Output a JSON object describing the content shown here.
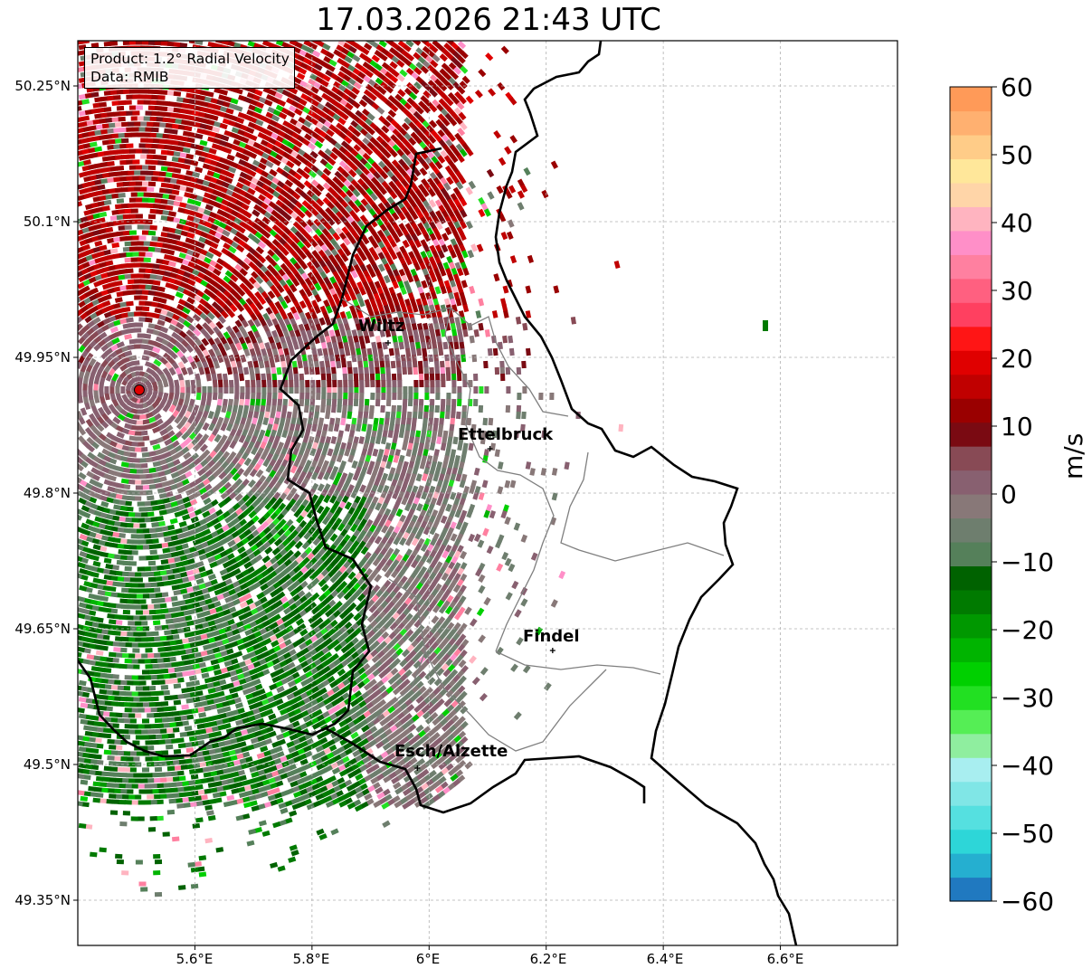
{
  "title": "17.03.2026 21:43 UTC",
  "info": {
    "product_line": "Product: 1.2° Radial Velocity",
    "data_line": "Data: RMIB"
  },
  "axes": {
    "lat_ticks": [
      "50.25°N",
      "50.1°N",
      "49.95°N",
      "49.8°N",
      "49.65°N",
      "49.5°N",
      "49.35°N"
    ],
    "lon_ticks": [
      "5.6°E",
      "5.8°E",
      "6°E",
      "6.2°E",
      "6.4°E",
      "6.6°E"
    ],
    "lat_range": [
      49.3,
      50.3
    ],
    "lon_range": [
      5.4,
      6.8
    ]
  },
  "colorbar": {
    "unit": "m/s",
    "range": [
      -60,
      60
    ],
    "tick_labels": [
      "60",
      "50",
      "40",
      "30",
      "20",
      "10",
      "0",
      "−10",
      "−20",
      "−30",
      "−40",
      "−50",
      "−60"
    ]
  },
  "cities": [
    {
      "name": "Wiltz",
      "lon": 5.93,
      "lat": 49.966
    },
    {
      "name": "Ettelbruck",
      "lon": 6.104,
      "lat": 49.849
    },
    {
      "name": "Findel",
      "lon": 6.211,
      "lat": 49.626
    },
    {
      "name": "Esch/Alzette",
      "lon": 5.98,
      "lat": 49.496
    }
  ],
  "radar_site": {
    "lon": 5.505,
    "lat": 49.914
  },
  "colors": {
    "border": "#000000",
    "district_lines": "#7f7f7f",
    "radar_marker": "#e00000",
    "cmap": [
      "#2079c0",
      "#25afd0",
      "#2dd6d8",
      "#55e0e0",
      "#80e6e6",
      "#a8eef0",
      "#8fee9f",
      "#55ee55",
      "#22e022",
      "#00d000",
      "#00b400",
      "#009800",
      "#007a00",
      "#006200",
      "#55805a",
      "#6e7e6e",
      "#887878",
      "#886070",
      "#884a55",
      "#7a0a12",
      "#9a0000",
      "#c00000",
      "#e00000",
      "#ff1515",
      "#ff4060",
      "#ff6080",
      "#ff80a0",
      "#ff8fc8",
      "#ffb4c0",
      "#ffd5a8",
      "#ffe79a",
      "#ffcc88",
      "#ffb070",
      "#ff9a58"
    ]
  }
}
